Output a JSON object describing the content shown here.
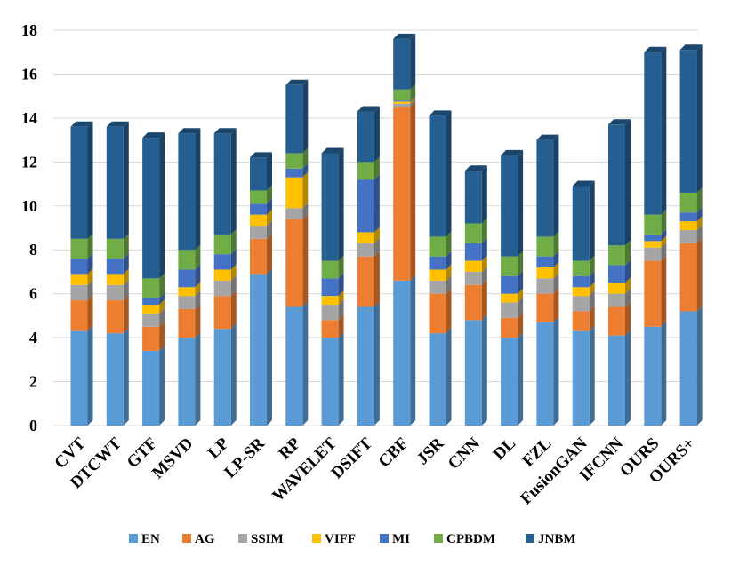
{
  "chart_data": {
    "type": "bar",
    "stacked": true,
    "categories": [
      "CVT",
      "DTCWT",
      "GTF",
      "MSVD",
      "LP",
      "LP-SR",
      "RP",
      "WAVELET",
      "DSIFT",
      "CBF",
      "JSR",
      "CNN",
      "DL",
      "FZL",
      "FusionGAN",
      "IFCNN",
      "OURS",
      "OURS+"
    ],
    "series": [
      {
        "name": "EN",
        "color": "#5b9bd5",
        "values": [
          4.3,
          4.2,
          3.4,
          4.0,
          4.4,
          6.9,
          5.4,
          4.0,
          5.4,
          6.6,
          4.2,
          4.8,
          4.0,
          4.7,
          4.3,
          4.1,
          4.5,
          5.2
        ]
      },
      {
        "name": "AG",
        "color": "#ed7d31",
        "values": [
          1.4,
          1.5,
          1.1,
          1.3,
          1.5,
          1.6,
          4.0,
          0.8,
          2.3,
          7.9,
          1.8,
          1.6,
          0.9,
          1.3,
          0.9,
          1.3,
          3.0,
          3.1
        ]
      },
      {
        "name": "SSIM",
        "color": "#a5a5a5",
        "values": [
          0.7,
          0.7,
          0.6,
          0.6,
          0.7,
          0.6,
          0.5,
          0.7,
          0.6,
          0.15,
          0.6,
          0.6,
          0.7,
          0.7,
          0.7,
          0.6,
          0.6,
          0.6
        ]
      },
      {
        "name": "VIFF",
        "color": "#ffc000",
        "values": [
          0.5,
          0.5,
          0.4,
          0.4,
          0.5,
          0.5,
          1.4,
          0.4,
          0.5,
          0.1,
          0.5,
          0.5,
          0.4,
          0.5,
          0.4,
          0.5,
          0.3,
          0.4
        ]
      },
      {
        "name": "MI",
        "color": "#4472c4",
        "values": [
          0.7,
          0.7,
          0.3,
          0.8,
          0.7,
          0.5,
          0.4,
          0.8,
          2.4,
          0.05,
          0.6,
          0.8,
          0.8,
          0.5,
          0.5,
          0.8,
          0.3,
          0.4
        ]
      },
      {
        "name": "CPBDM",
        "color": "#70ad47",
        "values": [
          0.9,
          0.9,
          0.9,
          0.9,
          0.9,
          0.6,
          0.7,
          0.8,
          0.8,
          0.5,
          0.9,
          0.9,
          0.9,
          0.9,
          0.7,
          0.9,
          0.9,
          0.9
        ]
      },
      {
        "name": "JNBM",
        "color": "#255e91",
        "values": [
          5.1,
          5.1,
          6.4,
          5.3,
          4.6,
          1.5,
          3.1,
          4.9,
          2.3,
          2.3,
          5.5,
          2.4,
          4.6,
          4.4,
          3.4,
          5.5,
          7.4,
          6.5
        ]
      }
    ],
    "title": "",
    "xlabel": "",
    "ylabel": "",
    "ylim": [
      0,
      18
    ],
    "yticks": [
      0,
      2,
      4,
      6,
      8,
      10,
      12,
      14,
      16,
      18
    ],
    "grid": true,
    "legend": "bottom"
  }
}
